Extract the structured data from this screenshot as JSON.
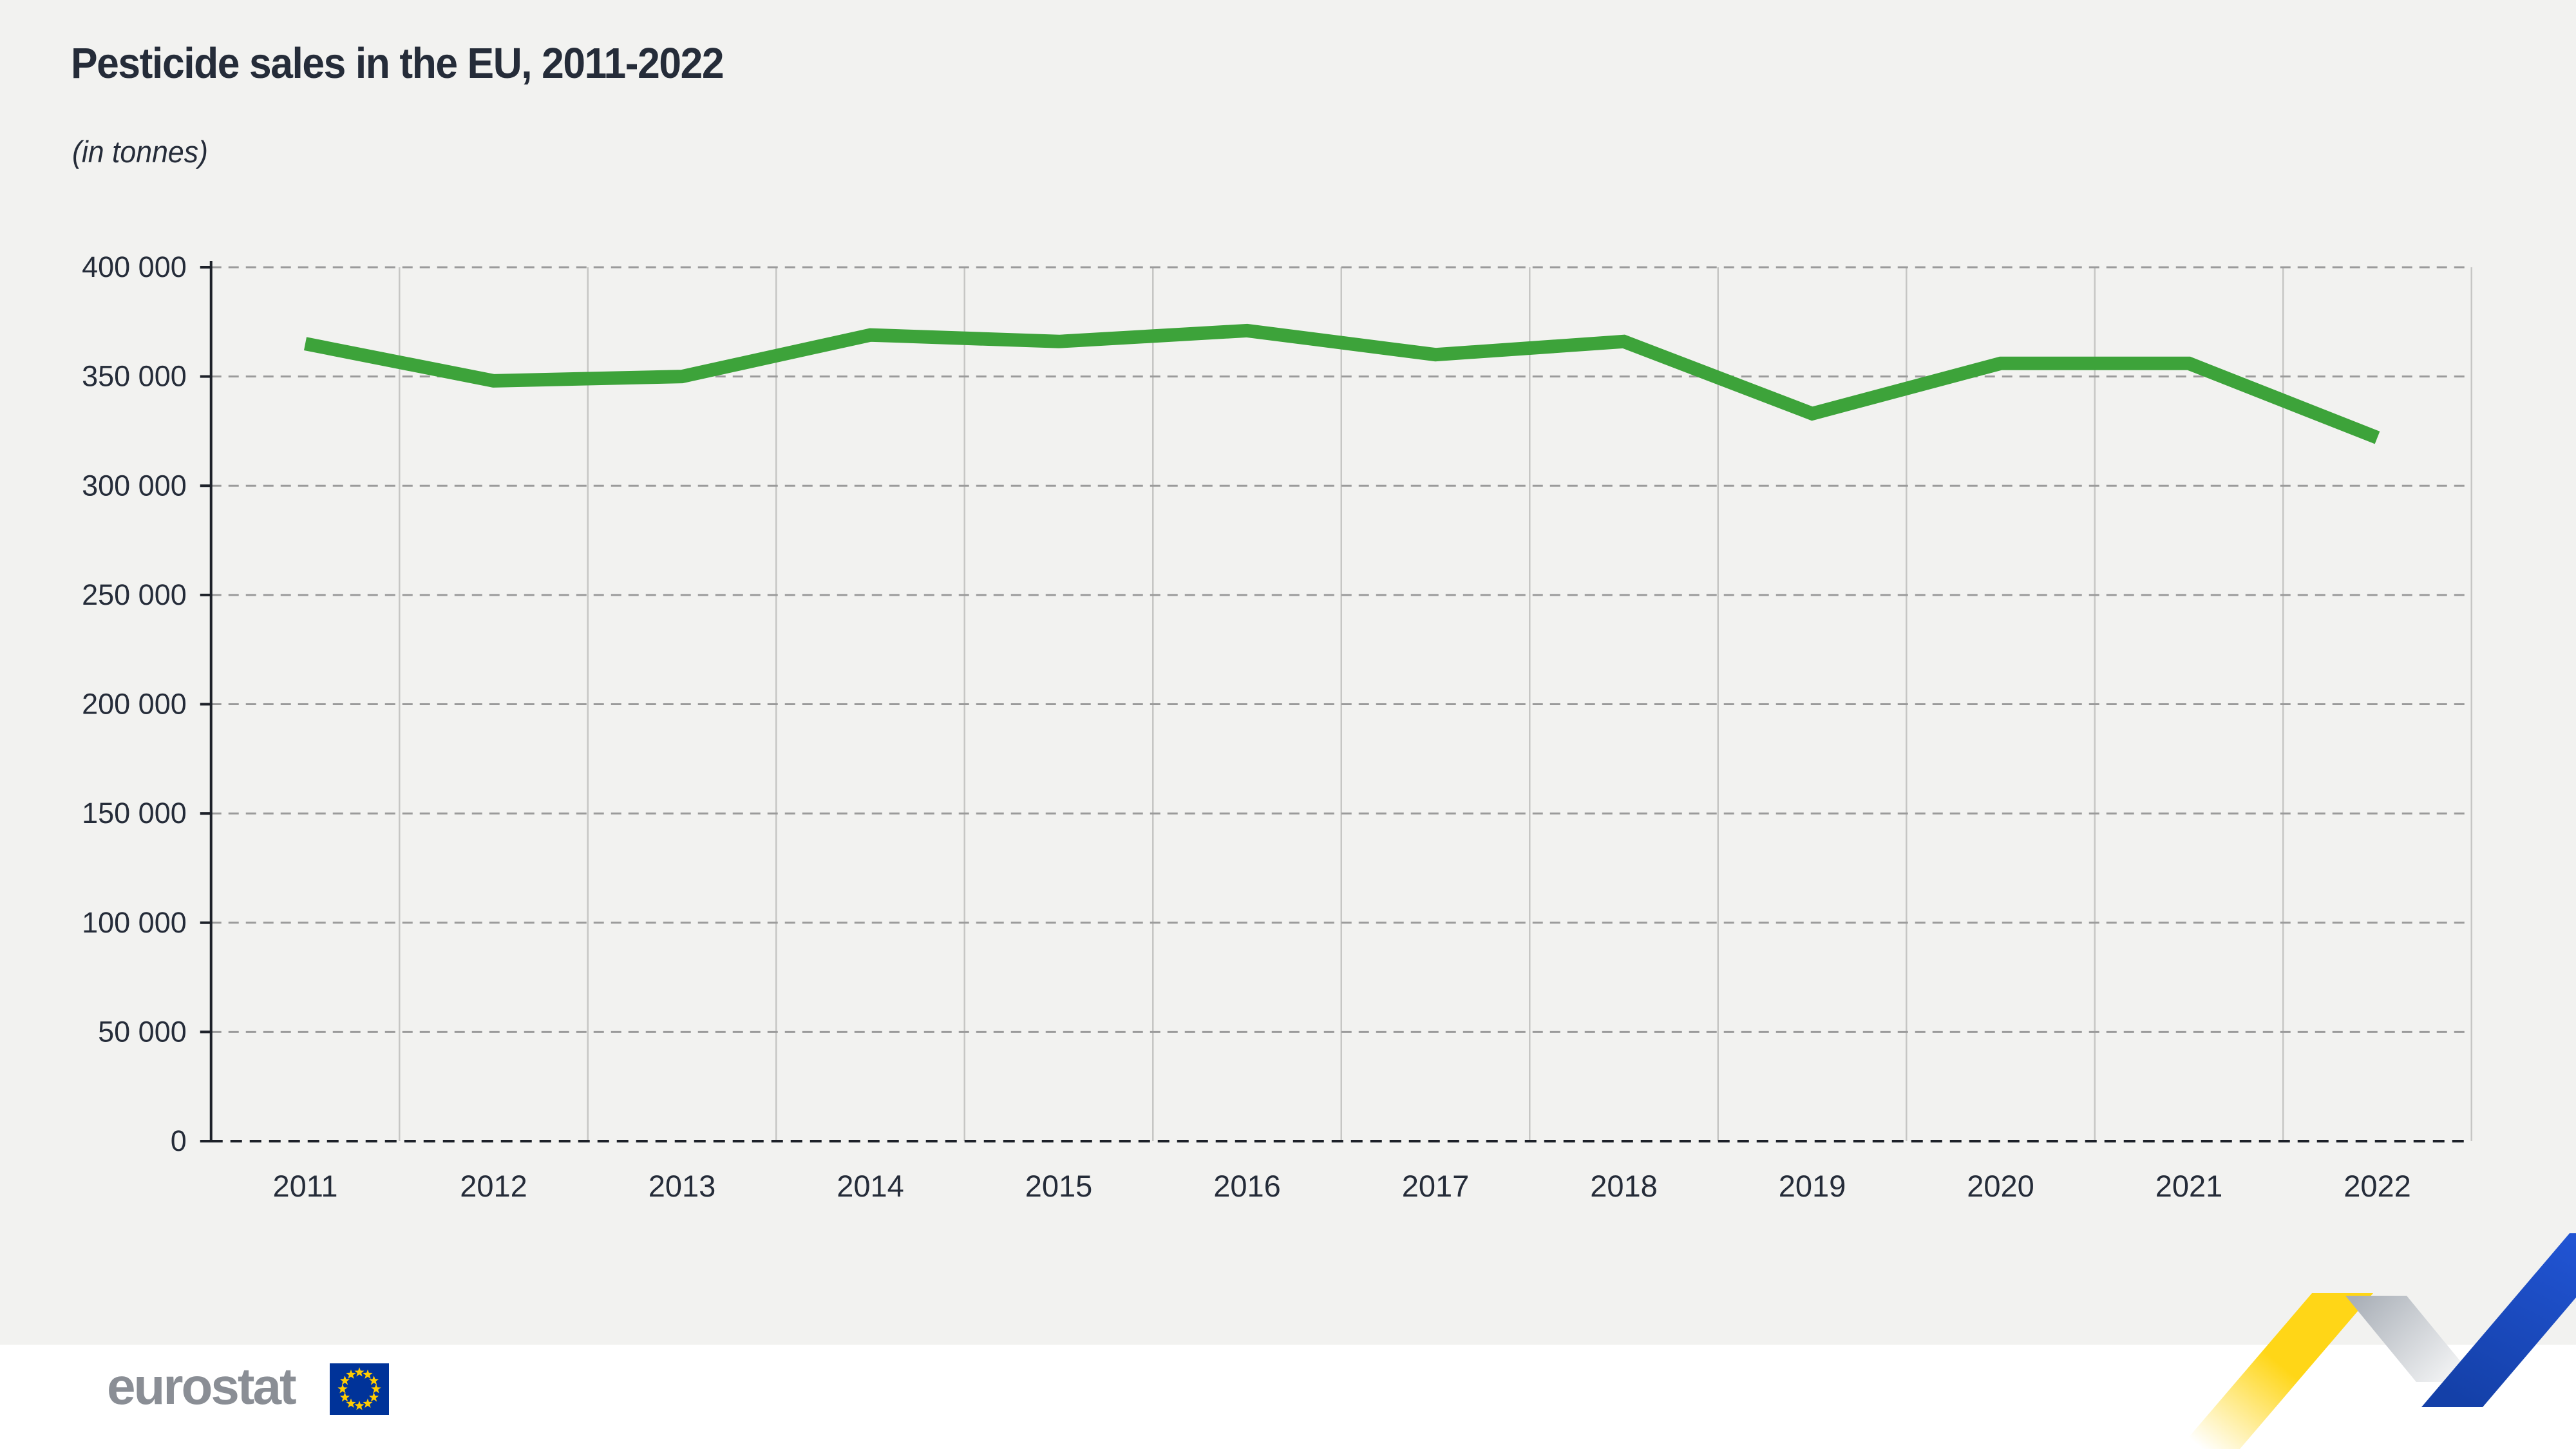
{
  "header": {
    "title": "Pesticide sales in the EU, 2011-2022",
    "subtitle": "(in tonnes)"
  },
  "chart_data": {
    "type": "line",
    "title": "Pesticide sales in the EU, 2011-2022",
    "unit_note": "(in tonnes)",
    "categories": [
      "2011",
      "2012",
      "2013",
      "2014",
      "2015",
      "2016",
      "2017",
      "2018",
      "2019",
      "2020",
      "2021",
      "2022"
    ],
    "series": [
      {
        "name": "Pesticide sales in the EU (tonnes)",
        "values": [
          365000,
          348000,
          350000,
          369000,
          366000,
          371000,
          360000,
          366000,
          333000,
          356000,
          356000,
          322000
        ]
      }
    ],
    "ylim": [
      0,
      400000
    ],
    "ytick_step": 50000,
    "ytick_labels": [
      "0",
      "50 000",
      "100 000",
      "150 000",
      "200 000",
      "250 000",
      "300 000",
      "350 000",
      "400 000"
    ],
    "grid": {
      "horizontal": "dashed",
      "vertical": "solid"
    },
    "legend": "none"
  },
  "footer": {
    "logo_text": "eurostat"
  },
  "colors": {
    "ink": "#252c39",
    "chart_bg": "#f2f2f0",
    "footer_bg": "#ffffff",
    "grid_dash": "#9b9b9b",
    "grid_solid": "#c6c6c4",
    "line_green": "#3da33a",
    "logo_gray": "#8a8e95",
    "flag_blue": "#003399",
    "flag_star": "#ffcc00",
    "ribbon_yellow": "#ffd617",
    "ribbon_gray_dark": "#aab0b8",
    "ribbon_gray_light": "#f3f4f5",
    "ribbon_blue_light": "#2154d3",
    "ribbon_blue_dark": "#1440a8"
  }
}
